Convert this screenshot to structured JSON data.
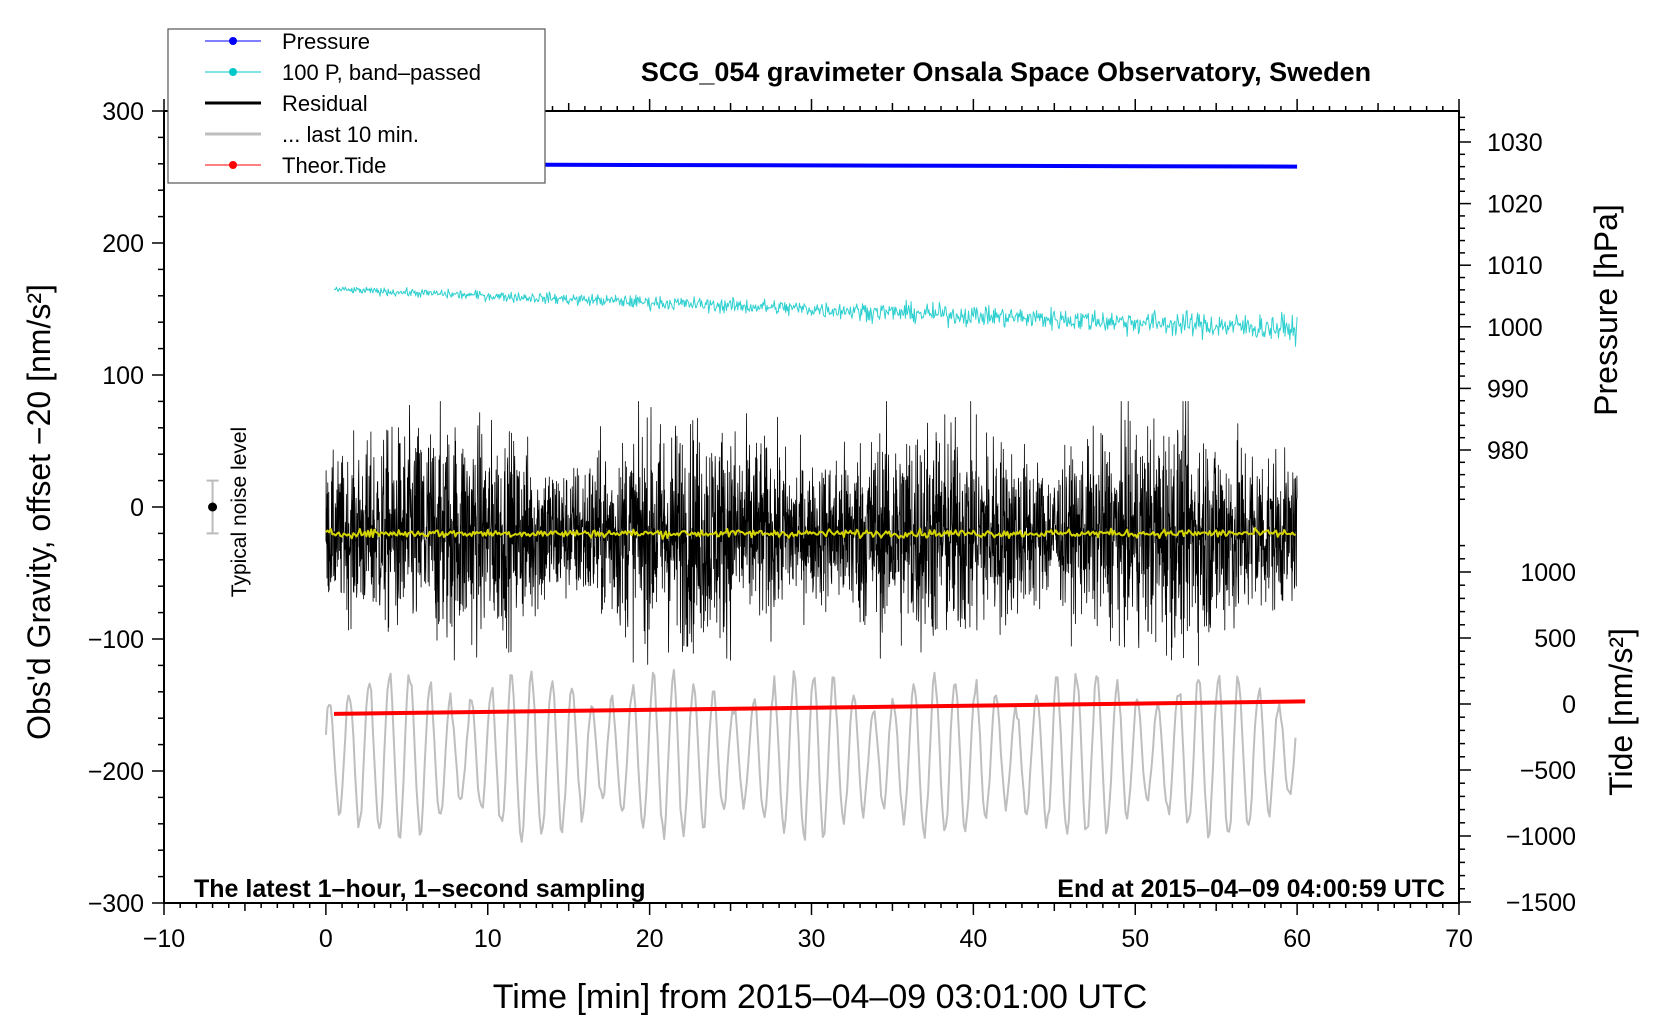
{
  "chart_data": {
    "type": "line",
    "title": "SCG_054 gravimeter Onsala Space Observatory, Sweden",
    "xlabel": "Time [min] from 2015–04–09 03:01:00 UTC",
    "ylabel_left": "Obs'd Gravity, offset −20 [nm/s²]",
    "ylabel_right_pressure": "Pressure [hPa]",
    "ylabel_right_tide": "Tide [nm/s²]",
    "xlim": [
      -10,
      70
    ],
    "ylim": [
      -300,
      300
    ],
    "x_ticks": [
      "−10",
      "0",
      "10",
      "20",
      "30",
      "40",
      "50",
      "60",
      "70"
    ],
    "y_ticks": [
      "−300",
      "−200",
      "−100",
      "0",
      "100",
      "200",
      "300"
    ],
    "pressure_ticks": [
      "980",
      "990",
      "1000",
      "1010",
      "1020",
      "1030"
    ],
    "tide_ticks": [
      "−1500",
      "−1000",
      "−500",
      "0",
      "500",
      "1000"
    ],
    "annotation_left": "The latest 1–hour, 1–second sampling",
    "annotation_right": "End at 2015–04–09 04:00:59 UTC",
    "noise_label": "Typical noise level",
    "noise_bar": {
      "x": -7,
      "center": 0,
      "half_range": 20
    },
    "legend": {
      "placement": "top-left",
      "entries": [
        {
          "label": "Pressure",
          "color": "#0000ff",
          "marker": true
        },
        {
          "label": "100 P, band–passed",
          "color": "#00c8c8",
          "marker": true
        },
        {
          "label": "Residual",
          "color": "#000000",
          "marker": false
        },
        {
          "label": "... last 10 min.",
          "color": "#bebebe",
          "marker": false
        },
        {
          "label": "Theor.Tide",
          "color": "#ff0000",
          "marker": true
        }
      ]
    },
    "series": [
      {
        "name": "Pressure",
        "axis": "pressure_hPa",
        "x_range": [
          0,
          60
        ],
        "start": 1026.4,
        "end": 1026.0,
        "color": "#0000ff"
      },
      {
        "name": "100 P, band-passed",
        "axis": "left",
        "x_range": [
          0,
          60
        ],
        "start": 165,
        "end": 135,
        "noise": 4,
        "color": "#30d0d0"
      },
      {
        "name": "Residual",
        "axis": "left",
        "x_range": [
          0,
          60
        ],
        "mean": -20,
        "noise": 35,
        "spike_max": 100,
        "color": "#000000"
      },
      {
        "name": "Residual mean",
        "axis": "left",
        "x_range": [
          0,
          60
        ],
        "mean": -20,
        "noise": 1.5,
        "color": "#d4d400"
      },
      {
        "name": "... last 10 min.",
        "axis": "left",
        "x_range": [
          0,
          60
        ],
        "mean": -188,
        "amplitude": 45,
        "color": "#bebebe"
      },
      {
        "name": "Theor.Tide",
        "axis": "tide",
        "x_range": [
          0,
          60.5
        ],
        "start": -75,
        "end": 20,
        "color": "#ff0000"
      }
    ]
  }
}
